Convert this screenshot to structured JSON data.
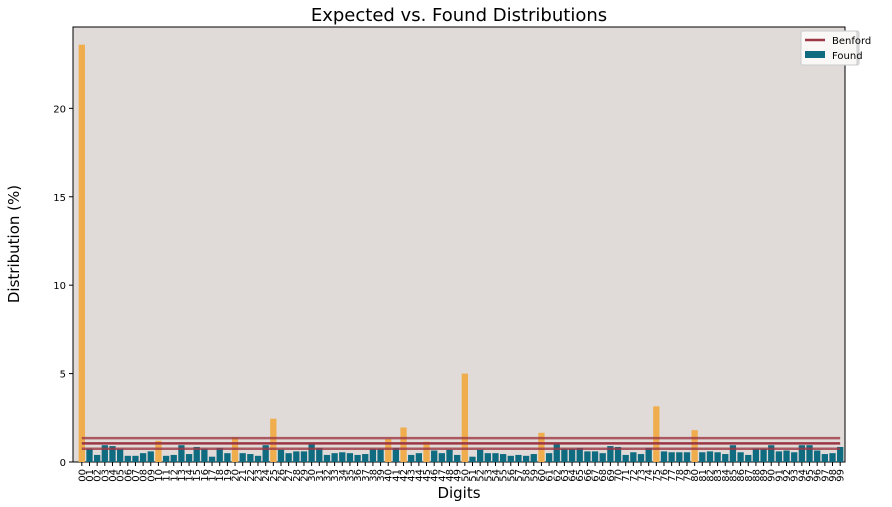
{
  "chart_data": {
    "type": "bar",
    "title": "Expected vs. Found Distributions",
    "xlabel": "Digits",
    "ylabel": "Distribution (%)",
    "ylim": [
      0,
      24.6
    ],
    "yticks": [
      0,
      5,
      10,
      15,
      20
    ],
    "categories": [
      "00",
      "01",
      "02",
      "03",
      "04",
      "05",
      "06",
      "07",
      "08",
      "09",
      "10",
      "11",
      "12",
      "13",
      "14",
      "15",
      "16",
      "17",
      "18",
      "19",
      "20",
      "21",
      "22",
      "23",
      "24",
      "25",
      "26",
      "27",
      "28",
      "29",
      "30",
      "31",
      "32",
      "33",
      "34",
      "35",
      "36",
      "37",
      "38",
      "39",
      "40",
      "41",
      "42",
      "43",
      "44",
      "45",
      "46",
      "47",
      "48",
      "49",
      "50",
      "51",
      "52",
      "53",
      "54",
      "55",
      "56",
      "57",
      "58",
      "59",
      "60",
      "61",
      "62",
      "63",
      "64",
      "65",
      "66",
      "67",
      "68",
      "69",
      "70",
      "71",
      "72",
      "73",
      "74",
      "75",
      "76",
      "77",
      "78",
      "79",
      "80",
      "81",
      "82",
      "83",
      "84",
      "85",
      "86",
      "87",
      "88",
      "89",
      "90",
      "91",
      "92",
      "93",
      "94",
      "95",
      "96",
      "97",
      "98",
      "99"
    ],
    "series": [
      {
        "name": "Found",
        "values": [
          23.6,
          0.75,
          0.4,
          0.95,
          0.9,
          0.75,
          0.35,
          0.35,
          0.5,
          0.6,
          1.2,
          0.35,
          0.4,
          0.95,
          0.45,
          0.85,
          0.75,
          0.3,
          0.8,
          0.5,
          1.4,
          0.5,
          0.45,
          0.35,
          0.95,
          2.45,
          0.7,
          0.5,
          0.6,
          0.6,
          1.0,
          0.8,
          0.4,
          0.5,
          0.55,
          0.5,
          0.4,
          0.45,
          0.75,
          0.75,
          1.3,
          0.8,
          1.95,
          0.4,
          0.5,
          1.15,
          0.65,
          0.5,
          0.7,
          0.4,
          5.0,
          0.3,
          0.7,
          0.5,
          0.5,
          0.45,
          0.35,
          0.4,
          0.35,
          0.45,
          1.65,
          0.5,
          1.0,
          0.75,
          0.75,
          0.8,
          0.6,
          0.6,
          0.5,
          0.9,
          0.85,
          0.4,
          0.55,
          0.45,
          0.8,
          3.15,
          0.6,
          0.55,
          0.55,
          0.55,
          1.8,
          0.55,
          0.6,
          0.55,
          0.45,
          0.95,
          0.55,
          0.4,
          0.75,
          0.75,
          0.95,
          0.6,
          0.65,
          0.55,
          0.95,
          0.95,
          0.65,
          0.45,
          0.5,
          0.85
        ],
        "bar_color_above_expected": "#efad4d",
        "bar_color_below_expected": "#0e6b80"
      },
      {
        "name": "Benford",
        "type": "line",
        "value_approx": 1.05,
        "band": [
          0.75,
          1.35
        ],
        "color": "#9c3846"
      }
    ],
    "legend": {
      "placement": "top-right",
      "items": [
        {
          "label": "Benford",
          "color": "#9c3846",
          "kind": "line"
        },
        {
          "label": "Found",
          "color": "#0e6b80",
          "kind": "patch"
        }
      ]
    },
    "colors": {
      "plot_background": "#e0dbd8",
      "figure_background": "#ffffff"
    },
    "grid": false
  }
}
